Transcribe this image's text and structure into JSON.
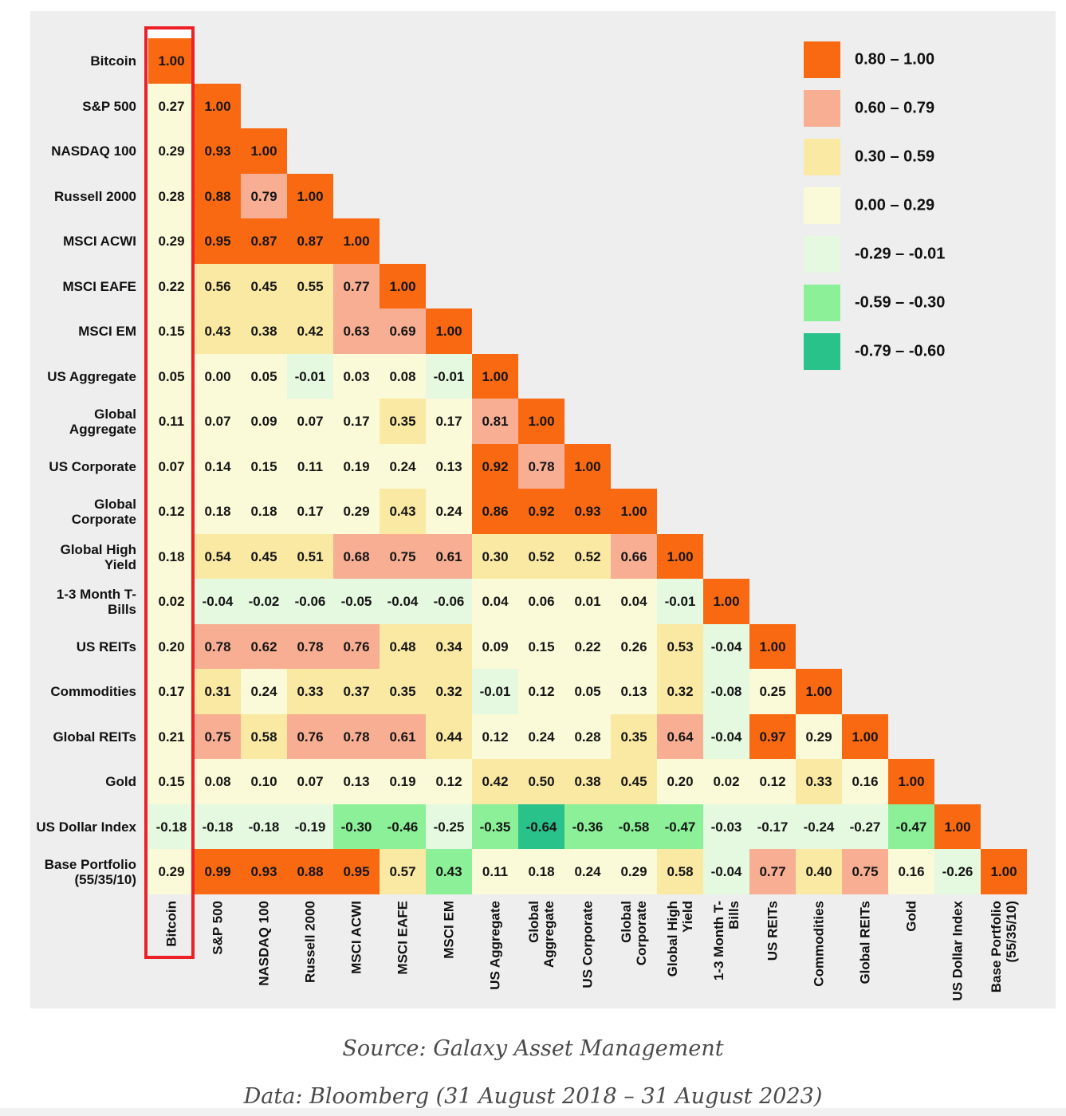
{
  "chart_data": {
    "type": "heatmap",
    "title": "",
    "description": "Lower-triangular asset correlation matrix with Bitcoin column highlighted",
    "categories": [
      "Bitcoin",
      "S&P 500",
      "NASDAQ 100",
      "Russell 2000",
      "MSCI ACWI",
      "MSCI EAFE",
      "MSCI EM",
      "US Aggregate",
      "Global Aggregate",
      "US Corporate",
      "Global Corporate",
      "Global High Yield",
      "1-3 Month T-Bills",
      "US REITs",
      "Commodities",
      "Global REITs",
      "Gold",
      "US Dollar Index",
      "Base Portfolio\n(55/35/10)"
    ],
    "highlighted_category": "Bitcoin",
    "matrix": [
      [
        "1.00"
      ],
      [
        "0.27",
        "1.00"
      ],
      [
        "0.29",
        "0.93",
        "1.00"
      ],
      [
        "0.28",
        "0.88",
        "0.79",
        "1.00"
      ],
      [
        "0.29",
        "0.95",
        "0.87",
        "0.87",
        "1.00"
      ],
      [
        "0.22",
        "0.56",
        "0.45",
        "0.55",
        "0.77",
        "1.00"
      ],
      [
        "0.15",
        "0.43",
        "0.38",
        "0.42",
        "0.63",
        "0.69",
        "1.00"
      ],
      [
        "0.05",
        "0.00",
        "0.05",
        "-0.01",
        "0.03",
        "0.08",
        "-0.01",
        "1.00"
      ],
      [
        "0.11",
        "0.07",
        "0.09",
        "0.07",
        "0.17",
        "0.35",
        "0.17",
        "0.81",
        "1.00"
      ],
      [
        "0.07",
        "0.14",
        "0.15",
        "0.11",
        "0.19",
        "0.24",
        "0.13",
        "0.92",
        "0.78",
        "1.00"
      ],
      [
        "0.12",
        "0.18",
        "0.18",
        "0.17",
        "0.29",
        "0.43",
        "0.24",
        "0.86",
        "0.92",
        "0.93",
        "1.00"
      ],
      [
        "0.18",
        "0.54",
        "0.45",
        "0.51",
        "0.68",
        "0.75",
        "0.61",
        "0.30",
        "0.52",
        "0.52",
        "0.66",
        "1.00"
      ],
      [
        "0.02",
        "-0.04",
        "-0.02",
        "-0.06",
        "-0.05",
        "-0.04",
        "-0.06",
        "0.04",
        "0.06",
        "0.01",
        "0.04",
        "-0.01",
        "1.00"
      ],
      [
        "0.20",
        "0.78",
        "0.62",
        "0.78",
        "0.76",
        "0.48",
        "0.34",
        "0.09",
        "0.15",
        "0.22",
        "0.26",
        "0.53",
        "-0.04",
        "1.00"
      ],
      [
        "0.17",
        "0.31",
        "0.24",
        "0.33",
        "0.37",
        "0.35",
        "0.32",
        "-0.01",
        "0.12",
        "0.05",
        "0.13",
        "0.32",
        "-0.08",
        "0.25",
        "1.00"
      ],
      [
        "0.21",
        "0.75",
        "0.58",
        "0.76",
        "0.78",
        "0.61",
        "0.44",
        "0.12",
        "0.24",
        "0.28",
        "0.35",
        "0.64",
        "-0.04",
        "0.97",
        "0.29",
        "1.00"
      ],
      [
        "0.15",
        "0.08",
        "0.10",
        "0.07",
        "0.13",
        "0.19",
        "0.12",
        "0.42",
        "0.50",
        "0.38",
        "0.45",
        "0.20",
        "0.02",
        "0.12",
        "0.33",
        "0.16",
        "1.00"
      ],
      [
        "-0.18",
        "-0.18",
        "-0.18",
        "-0.19",
        "-0.30",
        "-0.46",
        "-0.25",
        "-0.35",
        "-0.64",
        "-0.36",
        "-0.58",
        "-0.47",
        "-0.03",
        "-0.17",
        "-0.24",
        "-0.27",
        "-0.47",
        "1.00"
      ],
      [
        "0.29",
        "0.99",
        "0.93",
        "0.88",
        "0.95",
        "0.57",
        "0.43",
        "0.11",
        "0.18",
        "0.24",
        "0.29",
        "0.58",
        "-0.04",
        "0.77",
        "0.40",
        "0.75",
        "0.16",
        "-0.26",
        "1.00"
      ]
    ],
    "legend": {
      "position": "top-right",
      "items": [
        {
          "label": "0.80 – 1.00",
          "color": "#f96912",
          "min": 0.8,
          "max": 1.0
        },
        {
          "label": "0.60 – 0.79",
          "color": "#f8ae93",
          "min": 0.6,
          "max": 0.79
        },
        {
          "label": "0.30 – 0.59",
          "color": "#fae9a3",
          "min": 0.3,
          "max": 0.59
        },
        {
          "label": "0.00 – 0.29",
          "color": "#fafad8",
          "min": 0.0,
          "max": 0.29
        },
        {
          "label": "-0.29 – -0.01",
          "color": "#e4f9df",
          "min": -0.29,
          "max": -0.01
        },
        {
          "label": "-0.59 – -0.30",
          "color": "#8bf097",
          "min": -0.59,
          "max": -0.3
        },
        {
          "label": "-0.79 – -0.60",
          "color": "#2ac28b",
          "min": -0.79,
          "max": -0.6
        }
      ]
    },
    "color_overrides": [
      {
        "row": 8,
        "col": 7,
        "color": "#f8ae93"
      },
      {
        "row": 18,
        "col": 6,
        "color": "#8bf097"
      }
    ],
    "highlight_color": "#ec2027",
    "grid": false
  },
  "footer": {
    "source": "Source: Galaxy Asset Management",
    "data": "Data: Bloomberg (31 August 2018 – 31 August 2023)"
  }
}
